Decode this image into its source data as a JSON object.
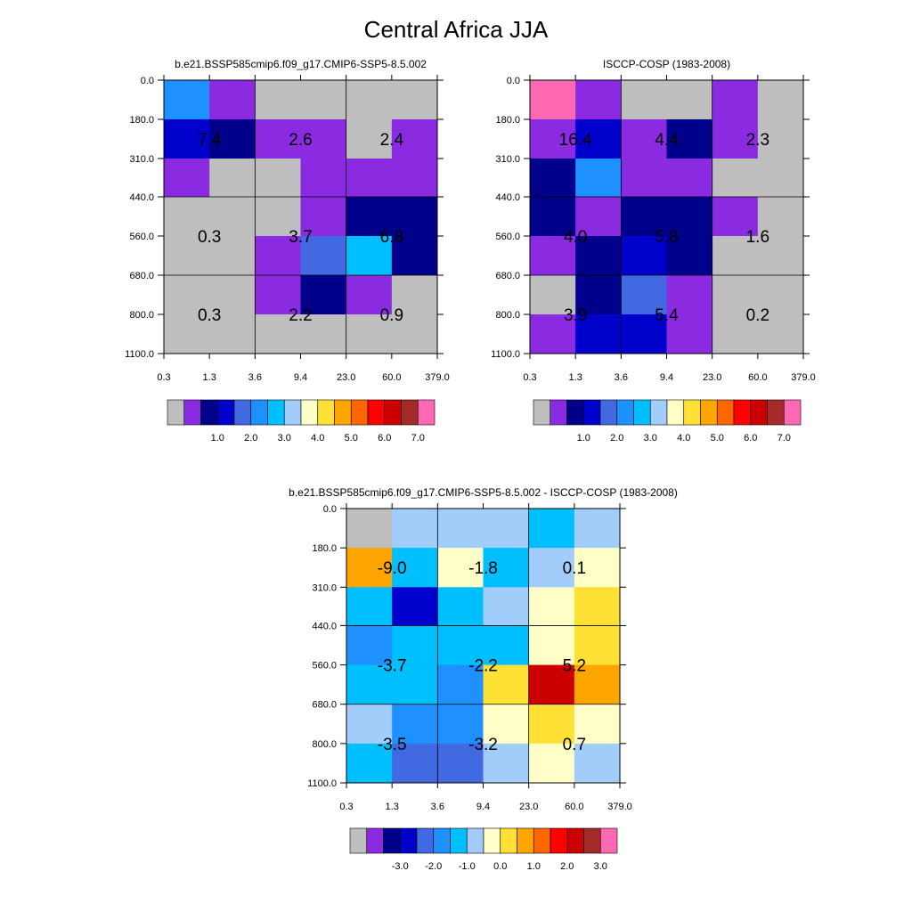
{
  "title": "Central Africa JJA",
  "chart_data": [
    {
      "type": "heatmap",
      "title": "b.e21.BSSP585cmip6.f09_g17.CMIP6-SSP5-8.5.002",
      "xticks": [
        "0.3",
        "1.3",
        "3.6",
        "9.4",
        "23.0",
        "60.0",
        "379.0"
      ],
      "yticks": [
        "0.0",
        "180.0",
        "310.0",
        "440.0",
        "560.0",
        "680.0",
        "800.0",
        "1100.0"
      ],
      "colorbar_labels": [
        "1.0",
        "2.0",
        "3.0",
        "4.0",
        "5.0",
        "6.0",
        "7.0"
      ],
      "cell_colors": [
        [
          "#1E90FF",
          "#8A2BE2",
          "#BEBEBE",
          "#BEBEBE",
          "#BEBEBE",
          "#BEBEBE"
        ],
        [
          "#0000CD",
          "#00008B",
          "#8A2BE2",
          "#8A2BE2",
          "#BEBEBE",
          "#8A2BE2"
        ],
        [
          "#8A2BE2",
          "#BEBEBE",
          "#BEBEBE",
          "#8A2BE2",
          "#8A2BE2",
          "#8A2BE2"
        ],
        [
          "#BEBEBE",
          "#BEBEBE",
          "#BEBEBE",
          "#8A2BE2",
          "#00008B",
          "#00008B"
        ],
        [
          "#BEBEBE",
          "#BEBEBE",
          "#8A2BE2",
          "#4169E1",
          "#00BFFF",
          "#00008B"
        ],
        [
          "#BEBEBE",
          "#BEBEBE",
          "#8A2BE2",
          "#00008B",
          "#8A2BE2",
          "#BEBEBE"
        ],
        [
          "#BEBEBE",
          "#BEBEBE",
          "#BEBEBE",
          "#BEBEBE",
          "#BEBEBE",
          "#BEBEBE"
        ]
      ],
      "group_values": [
        [
          "7.4",
          "2.6",
          "2.4"
        ],
        [
          "0.3",
          "3.7",
          "6.8"
        ],
        [
          "0.3",
          "2.2",
          "0.9"
        ]
      ]
    },
    {
      "type": "heatmap",
      "title": "ISCCP-COSP (1983-2008)",
      "xticks": [
        "0.3",
        "1.3",
        "3.6",
        "9.4",
        "23.0",
        "60.0",
        "379.0"
      ],
      "yticks": [
        "0.0",
        "180.0",
        "310.0",
        "440.0",
        "560.0",
        "680.0",
        "800.0",
        "1100.0"
      ],
      "colorbar_labels": [
        "1.0",
        "2.0",
        "3.0",
        "4.0",
        "5.0",
        "6.0",
        "7.0"
      ],
      "cell_colors": [
        [
          "#FF69B4",
          "#8A2BE2",
          "#BEBEBE",
          "#BEBEBE",
          "#8A2BE2",
          "#BEBEBE"
        ],
        [
          "#8A2BE2",
          "#0000CD",
          "#8A2BE2",
          "#00008B",
          "#8A2BE2",
          "#BEBEBE"
        ],
        [
          "#00008B",
          "#1E90FF",
          "#8A2BE2",
          "#8A2BE2",
          "#BEBEBE",
          "#BEBEBE"
        ],
        [
          "#00008B",
          "#8A2BE2",
          "#00008B",
          "#00008B",
          "#8A2BE2",
          "#BEBEBE"
        ],
        [
          "#8A2BE2",
          "#00008B",
          "#0000CD",
          "#00008B",
          "#BEBEBE",
          "#BEBEBE"
        ],
        [
          "#BEBEBE",
          "#00008B",
          "#4169E1",
          "#8A2BE2",
          "#BEBEBE",
          "#BEBEBE"
        ],
        [
          "#8A2BE2",
          "#0000CD",
          "#0000CD",
          "#8A2BE2",
          "#BEBEBE",
          "#BEBEBE"
        ]
      ],
      "group_values": [
        [
          "16.4",
          "4.4",
          "2.3"
        ],
        [
          "4.0",
          "5.8",
          "1.6"
        ],
        [
          "3.9",
          "5.4",
          "0.2"
        ]
      ]
    },
    {
      "type": "heatmap",
      "title": "b.e21.BSSP585cmip6.f09_g17.CMIP6-SSP5-8.5.002 - ISCCP-COSP (1983-2008)",
      "xticks": [
        "0.3",
        "1.3",
        "3.6",
        "9.4",
        "23.0",
        "60.0",
        "379.0"
      ],
      "yticks": [
        "0.0",
        "180.0",
        "310.0",
        "440.0",
        "560.0",
        "680.0",
        "800.0",
        "1100.0"
      ],
      "colorbar_labels": [
        "-3.0",
        "-2.0",
        "-1.0",
        "0.0",
        "1.0",
        "2.0",
        "3.0"
      ],
      "cell_colors": [
        [
          "#BEBEBE",
          "#A2CDFA",
          "#A2CDFA",
          "#A2CDFA",
          "#00BFFF",
          "#A2CDFA"
        ],
        [
          "#FFA500",
          "#00BFFF",
          "#FFFFC8",
          "#00BFFF",
          "#A2CDFA",
          "#FFFFC8"
        ],
        [
          "#00BFFF",
          "#0000CD",
          "#00BFFF",
          "#A2CDFA",
          "#FFFFC8",
          "#FFE135"
        ],
        [
          "#1E90FF",
          "#00BFFF",
          "#00BFFF",
          "#00BFFF",
          "#FFFFC8",
          "#FFE135"
        ],
        [
          "#00BFFF",
          "#00BFFF",
          "#1E90FF",
          "#FFE135",
          "#CC0000",
          "#FFA500"
        ],
        [
          "#A2CDFA",
          "#1E90FF",
          "#1E90FF",
          "#FFFFC8",
          "#FFE135",
          "#FFFFC8"
        ],
        [
          "#00BFFF",
          "#4169E1",
          "#4169E1",
          "#A2CDFA",
          "#FFFFC8",
          "#A2CDFA"
        ]
      ],
      "group_values": [
        [
          "-9.0",
          "-1.8",
          "0.1"
        ],
        [
          "-3.7",
          "-2.2",
          "5.2"
        ],
        [
          "-3.5",
          "-3.2",
          "0.7"
        ]
      ]
    }
  ],
  "colorbars": {
    "abs_colors": [
      "#BEBEBE",
      "#8A2BE2",
      "#00008B",
      "#0000CD",
      "#4169E1",
      "#1E90FF",
      "#00BFFF",
      "#A2CDFA",
      "#FFFFC8",
      "#FFE135",
      "#FFA500",
      "#FF6600",
      "#FF0000",
      "#CC0000",
      "#A52A2A",
      "#FF69B4"
    ],
    "diff_colors": [
      "#BEBEBE",
      "#8A2BE2",
      "#00008B",
      "#0000CD",
      "#4169E1",
      "#1E90FF",
      "#00BFFF",
      "#A2CDFA",
      "#FFFFC8",
      "#FFE135",
      "#FFA500",
      "#FF6600",
      "#FF0000",
      "#CC0000",
      "#A52A2A",
      "#FF69B4"
    ]
  }
}
